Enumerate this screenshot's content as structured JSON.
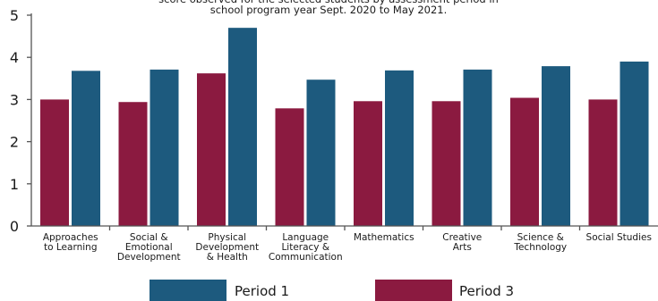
{
  "chart_data": {
    "type": "bar",
    "title_lines": [
      "score observed for the selected students by assessment period in",
      "school program year Sept. 2020 to May 2021."
    ],
    "categories": [
      [
        "Approaches",
        "to Learning"
      ],
      [
        "Social &",
        "Emotional",
        "Development"
      ],
      [
        "Physical",
        "Development",
        "& Health"
      ],
      [
        "Language",
        "Literacy &",
        "Communication"
      ],
      [
        "Mathematics"
      ],
      [
        "Creative",
        "Arts"
      ],
      [
        "Science &",
        "Technology"
      ],
      [
        "Social Studies"
      ]
    ],
    "series": [
      {
        "name": "Period 3",
        "color": "#8b1a40",
        "values": [
          3.0,
          2.94,
          3.62,
          2.79,
          2.96,
          2.96,
          3.04,
          3.0
        ]
      },
      {
        "name": "Period 1",
        "color": "#1d5a7e",
        "values": [
          3.68,
          3.71,
          4.7,
          3.47,
          3.69,
          3.71,
          3.79,
          3.9
        ]
      }
    ],
    "ylim": [
      0,
      5
    ],
    "yticks": [
      0,
      1,
      2,
      3,
      4,
      5
    ],
    "legend": [
      "Period 1",
      "Period 3"
    ],
    "legend_position": "bottom",
    "grid": false
  }
}
